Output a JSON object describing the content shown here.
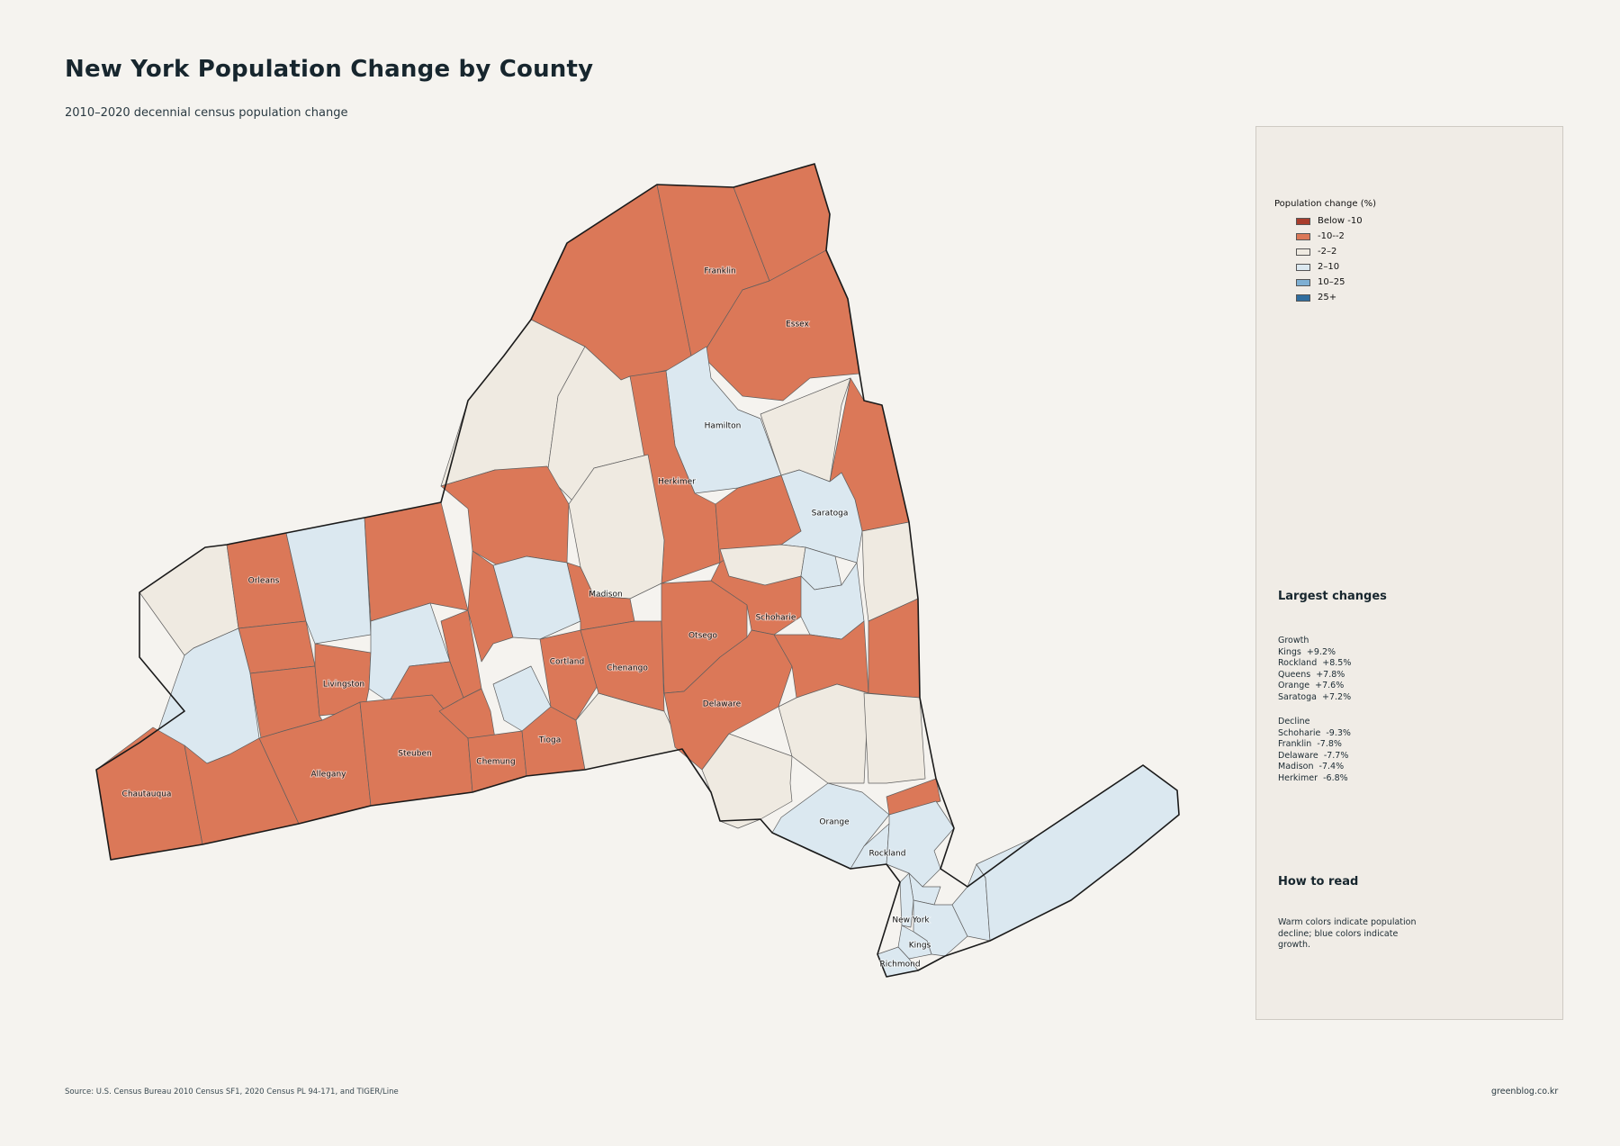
{
  "title": "New York Population Change by County",
  "subtitle": "2010–2020 decennial census population change",
  "colors": {
    "below_-10": "#a83c2c",
    "-10--2": "#db7858",
    "-2-2": "#efeae1",
    "2-10": "#dbe8f0",
    "10-25": "#7eafd3",
    "25+": "#2f6d9e"
  },
  "legend": {
    "title": "Population change (%)",
    "items": [
      {
        "label": "Below -10",
        "color": "#a83c2c"
      },
      {
        "label": "-10--2",
        "color": "#db7858"
      },
      {
        "label": "-2–2",
        "color": "#efeae1"
      },
      {
        "label": "2–10",
        "color": "#dbe8f0"
      },
      {
        "label": "10–25",
        "color": "#7eafd3"
      },
      {
        "label": "25+",
        "color": "#2f6d9e"
      }
    ]
  },
  "largest_changes": {
    "title": "Largest changes",
    "growth_heading": "Growth",
    "growth": [
      {
        "county": "Kings",
        "value": "+9.2%"
      },
      {
        "county": "Rockland",
        "value": "+8.5%"
      },
      {
        "county": "Queens",
        "value": "+7.8%"
      },
      {
        "county": "Orange",
        "value": "+7.6%"
      },
      {
        "county": "Saratoga",
        "value": "+7.2%"
      }
    ],
    "decline_heading": "Decline",
    "decline": [
      {
        "county": "Schoharie",
        "value": "-9.3%"
      },
      {
        "county": "Franklin",
        "value": "-7.8%"
      },
      {
        "county": "Delaware",
        "value": "-7.7%"
      },
      {
        "county": "Madison",
        "value": "-7.4%"
      },
      {
        "county": "Herkimer",
        "value": "-6.8%"
      }
    ]
  },
  "how_to_read": {
    "title": "How to read",
    "text": "Warm colors indicate population decline; blue colors indicate growth."
  },
  "county_labels": {
    "franklin": "Franklin",
    "essex": "Essex",
    "hamilton": "Hamilton",
    "herkimer": "Herkimer",
    "saratoga": "Saratoga",
    "orleans": "Orleans",
    "madison": "Madison",
    "schoharie": "Schoharie",
    "otsego": "Otsego",
    "cortland": "Cortland",
    "chenango": "Chenango",
    "livingston": "Livingston",
    "delaware": "Delaware",
    "steuben": "Steuben",
    "chemung": "Chemung",
    "tioga": "Tioga",
    "allegany": "Allegany",
    "chautauqua": "Chautauqua",
    "orange": "Orange",
    "rockland": "Rockland",
    "new_york": "New York",
    "kings": "Kings",
    "richmond": "Richmond"
  },
  "source": "Source: U.S. Census Bureau 2010 Census SF1, 2020 Census PL 94-171, and TIGER/Line",
  "credit": "greenblog.co.kr"
}
